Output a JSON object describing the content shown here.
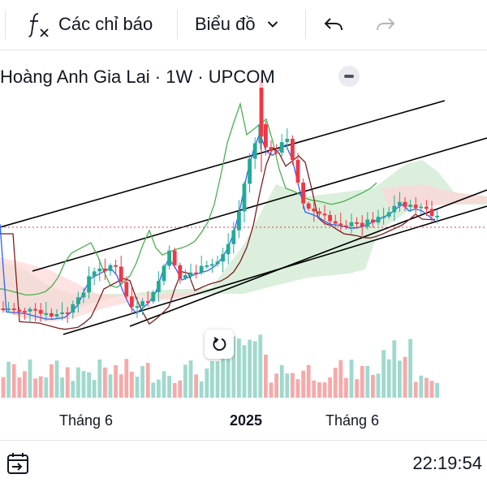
{
  "toolbar": {
    "indicators_label": "Các chỉ báo",
    "chart_type_label": "Biểu đồ"
  },
  "legend": {
    "title": "Hoàng Anh Gia Lai · 1W · UPCOM"
  },
  "time_axis": {
    "labels": [
      {
        "text": "Tháng 6",
        "bold": false
      },
      {
        "text": "2025",
        "bold": true
      },
      {
        "text": "Tháng 6",
        "bold": false
      }
    ]
  },
  "status_bar": {
    "clock": "22:19:54"
  },
  "colors": {
    "up": "#22ab94",
    "down": "#f23645",
    "volume_up": "#9fd9cd",
    "volume_down": "#f7a9a9",
    "cloud_green": "#c8e6c9",
    "cloud_red": "#ffd6d6",
    "fast_line": "#2962ff",
    "slow_line": "#7b1f1f",
    "lagging_line": "#4caf50",
    "channel_line": "#000000"
  },
  "icons": [
    "fx-icon",
    "chevron-down-icon",
    "undo-icon",
    "redo-icon",
    "reset-icon",
    "calendar-goto-icon"
  ]
}
